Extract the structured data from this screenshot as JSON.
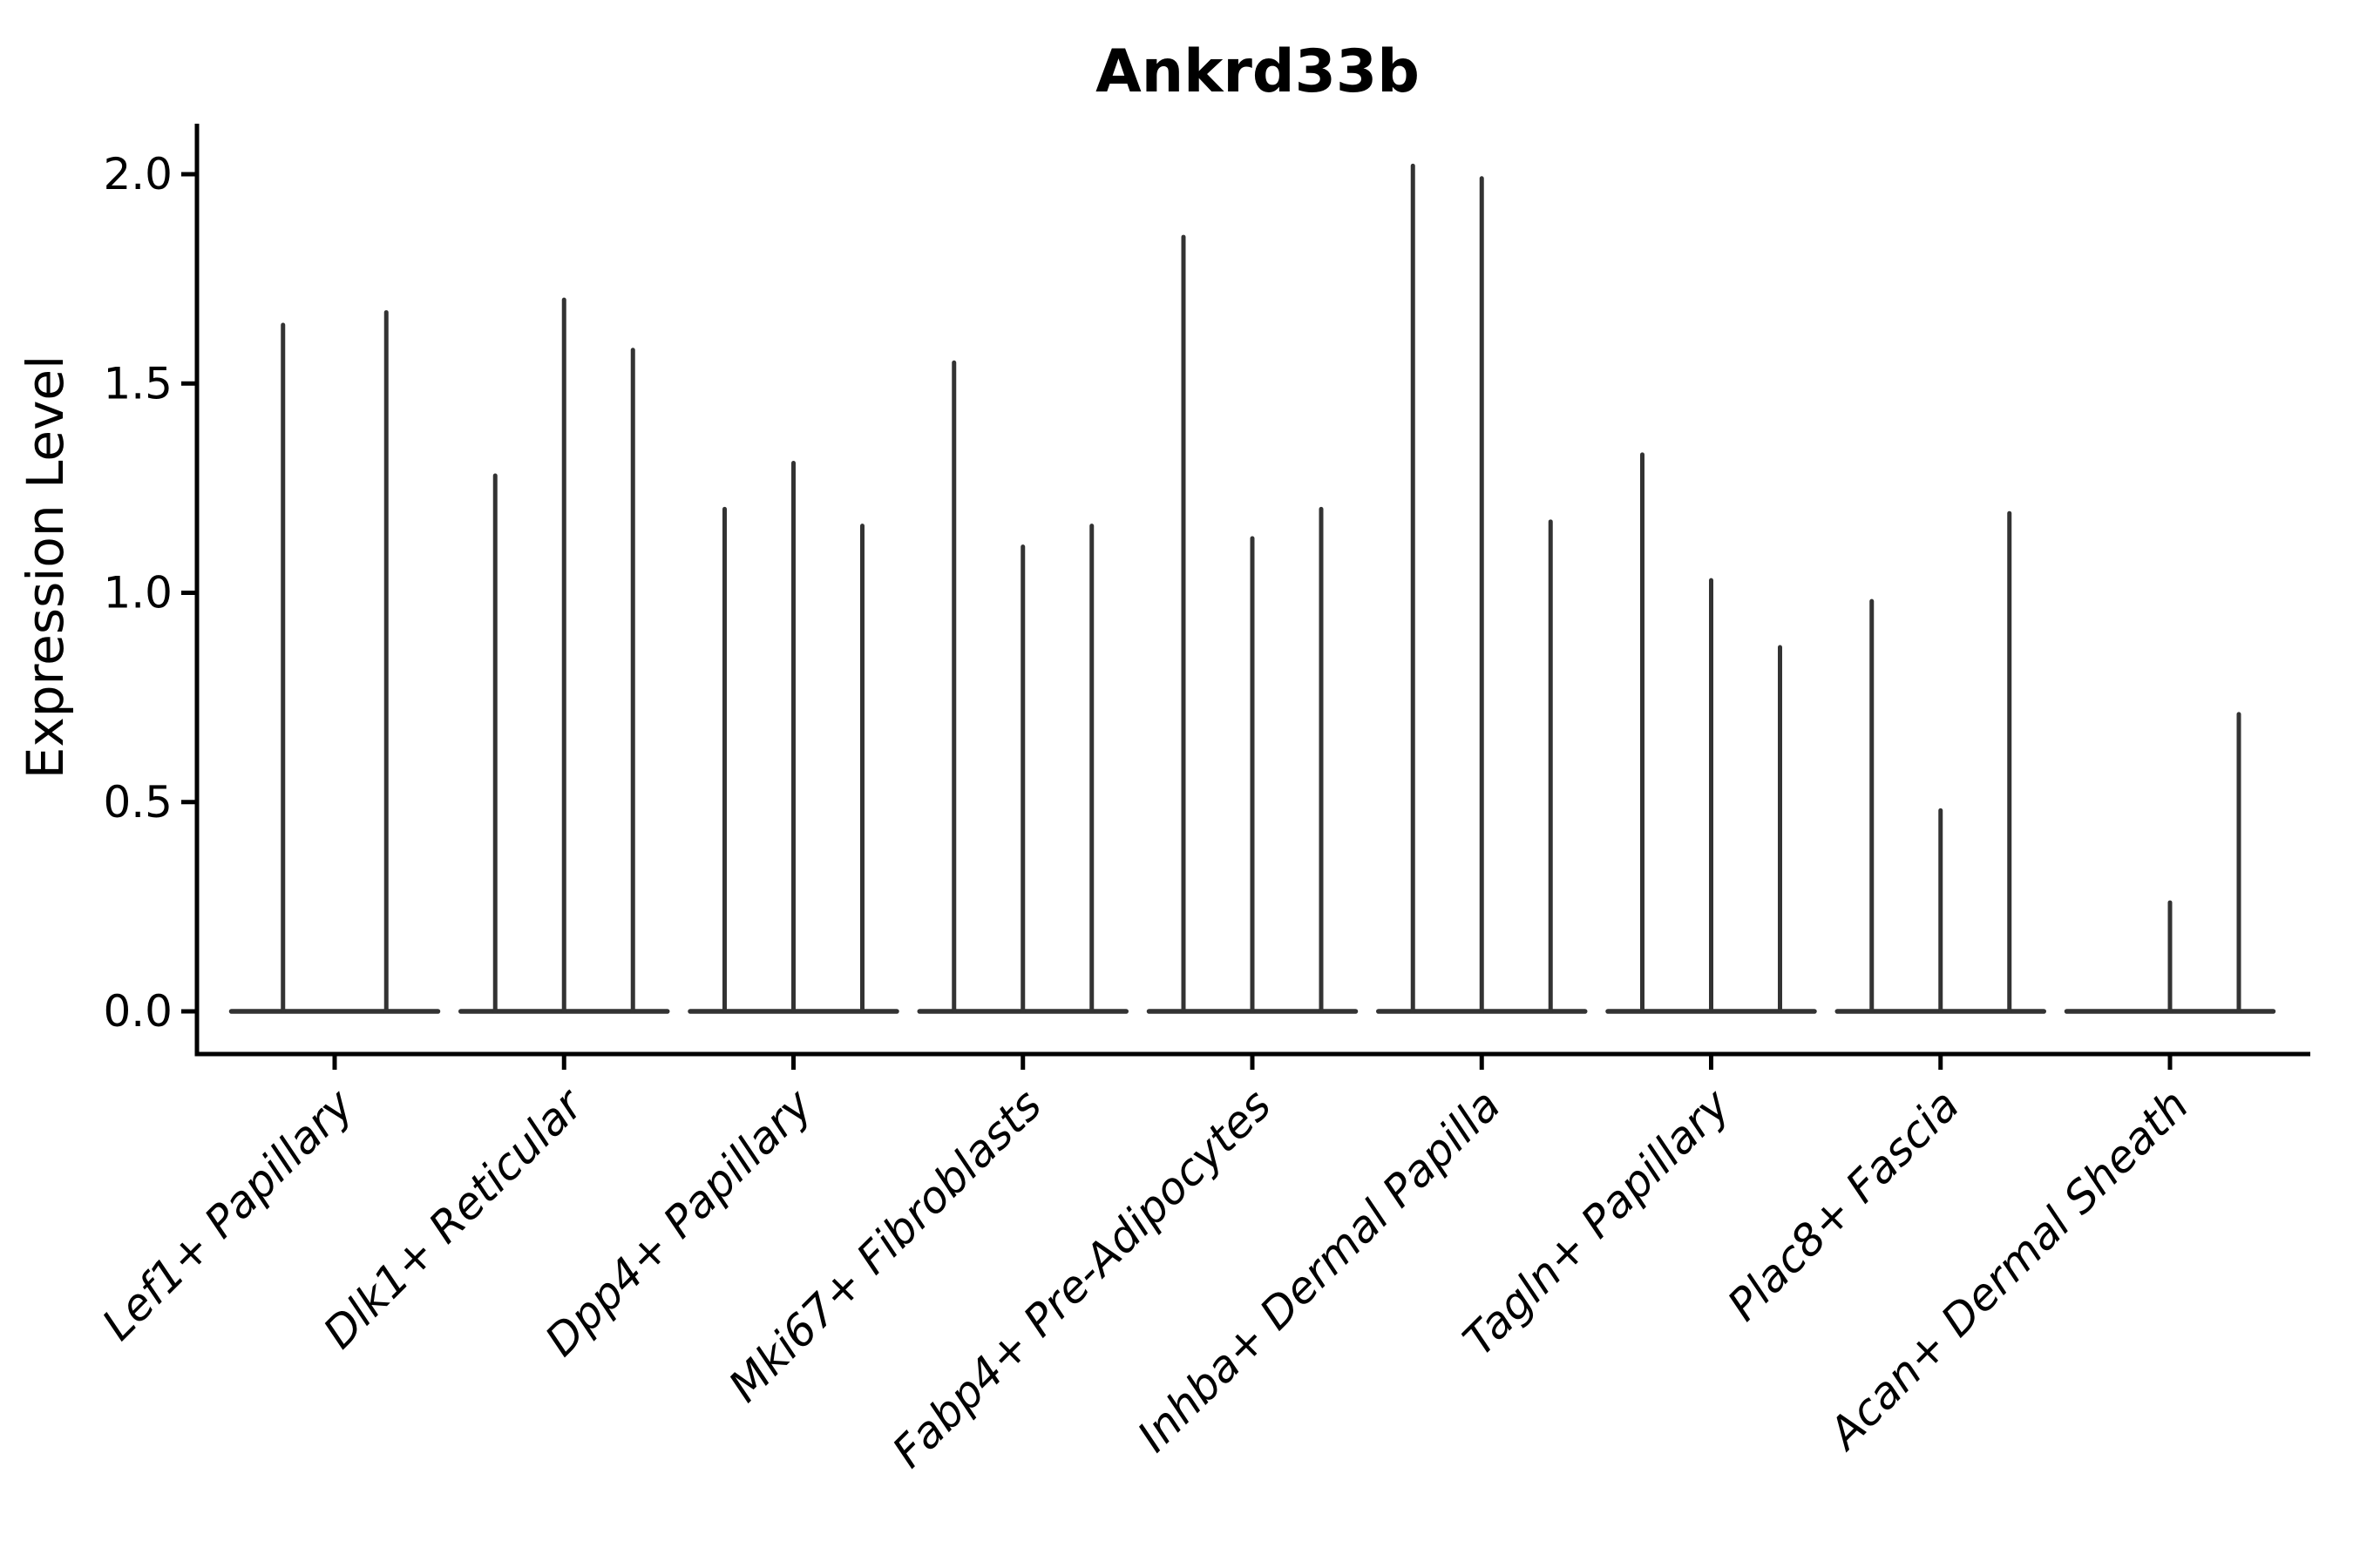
{
  "figure": {
    "title": "Ankrd33b",
    "y_axis_label": "Expression Level"
  },
  "chart_data": {
    "type": "violin",
    "title": "Ankrd33b",
    "xlabel": "",
    "ylabel": "Expression Level",
    "ylim": [
      -0.1,
      2.12
    ],
    "yticks": [
      0.0,
      0.5,
      1.0,
      1.5,
      2.0
    ],
    "ytick_labels": [
      "0.0",
      "0.5",
      "1.0",
      "1.5",
      "2.0"
    ],
    "grid": false,
    "legend": "none",
    "categories": [
      "Lef1+ Papillary",
      "Dlk1+ Reticular",
      "Dpp4+ Papillary",
      "Mki67+ Fibroblasts",
      "Fabp4+ Pre-Adipocytes",
      "Inhba+ Dermal Papilla",
      "Tagln+ Papillary",
      "Plac8+ Fascia",
      "Acan+ Dermal Sheath"
    ],
    "groups": [
      {
        "category": "Lef1+ Papillary",
        "violin_maxima": [
          1.64,
          1.67
        ]
      },
      {
        "category": "Dlk1+ Reticular",
        "violin_maxima": [
          1.28,
          1.7,
          1.58
        ]
      },
      {
        "category": "Dpp4+ Papillary",
        "violin_maxima": [
          1.2,
          1.31,
          1.16
        ]
      },
      {
        "category": "Mki67+ Fibroblasts",
        "violin_maxima": [
          1.55,
          1.11,
          1.16
        ]
      },
      {
        "category": "Fabp4+ Pre-Adipocytes",
        "violin_maxima": [
          1.85,
          1.13,
          1.2
        ]
      },
      {
        "category": "Inhba+ Dermal Papilla",
        "violin_maxima": [
          2.02,
          1.99,
          1.17
        ]
      },
      {
        "category": "Tagln+ Papillary",
        "violin_maxima": [
          1.33,
          1.03,
          0.87
        ]
      },
      {
        "category": "Plac8+ Fascia",
        "violin_maxima": [
          0.98,
          0.48,
          1.19
        ]
      },
      {
        "category": "Acan+ Dermal Sheath",
        "violin_maxima": [
          0.0,
          0.26,
          0.71
        ]
      }
    ],
    "note": "Each category shows thin violins collapsed at 0 expression with a narrow spike rising to the maximum expression value; violins with maximum 0 are flat baselines only."
  },
  "colors": {
    "violin_line": "#333333",
    "axis": "#000000",
    "text": "#000000",
    "background": "#ffffff"
  }
}
